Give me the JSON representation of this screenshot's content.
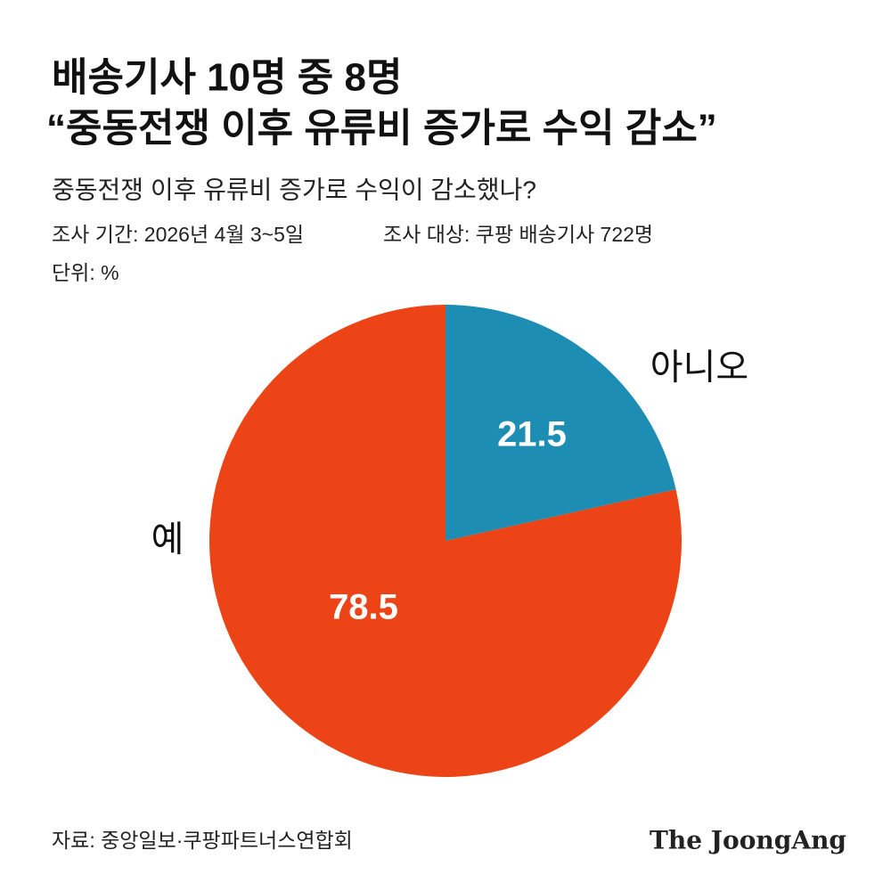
{
  "chart_data": {
    "type": "pie",
    "title": [
      "배송기사 10명 중 8명",
      "“중동전쟁 이후 유류비 증가로 수익 감소”"
    ],
    "subtitle": "중동전쟁 이후 유류비 증가로 수익이 감소했나?",
    "notes": [
      "조사 기간: 2026년 4월 3~5일",
      "조사 대상: 쿠팡 배송기사 722명",
      "단위: %"
    ],
    "categories": [
      "아니오",
      "예"
    ],
    "values": [
      21.5,
      78.5
    ],
    "colors": [
      "#1d8db4",
      "#ec4416"
    ],
    "source": "자료: 중앙일보·쿠팡파트너스연합회",
    "brand": "The JoongAng"
  }
}
